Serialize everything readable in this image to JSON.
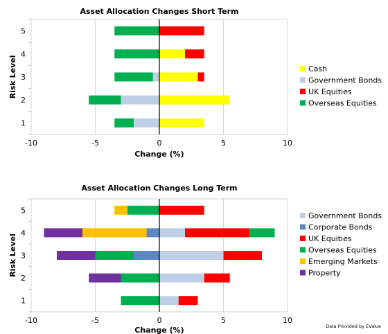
{
  "credit": "Data Provided by EValue",
  "chart_data": [
    {
      "type": "bar",
      "orientation": "horizontal",
      "stacked": "diverging",
      "title": "Asset Allocation Changes Short Term",
      "xlabel": "Change (%)",
      "ylabel": "Risk Level",
      "xlim": [
        -10,
        10
      ],
      "xticks": [
        "-10",
        "-5",
        "0",
        "5",
        "10"
      ],
      "categories": [
        "1",
        "2",
        "3",
        "4",
        "5"
      ],
      "grid": "vertical",
      "legend_position": "right",
      "legend_order": [
        "Cash",
        "Government Bonds",
        "UK Equities",
        "Overseas Equities"
      ],
      "series": [
        {
          "name": "Cash",
          "color": "#ffff00",
          "values": [
            3.5,
            5.5,
            3.0,
            2.0,
            0
          ]
        },
        {
          "name": "Government Bonds",
          "color": "#bfcfe5",
          "values": [
            -2.0,
            -3.0,
            -0.5,
            0,
            0
          ]
        },
        {
          "name": "UK Equities",
          "color": "#ff0000",
          "values": [
            0,
            0,
            0.5,
            1.5,
            3.5
          ]
        },
        {
          "name": "Overseas Equities",
          "color": "#00b050",
          "values": [
            -1.5,
            -2.5,
            -3.0,
            -3.5,
            -3.5
          ]
        }
      ]
    },
    {
      "type": "bar",
      "orientation": "horizontal",
      "stacked": "diverging",
      "title": "Asset Allocation Changes Long Term",
      "xlabel": "Change (%)",
      "ylabel": "Risk Level",
      "xlim": [
        -10,
        10
      ],
      "xticks": [
        "-10",
        "-5",
        "0",
        "5",
        "10"
      ],
      "categories": [
        "1",
        "2",
        "3",
        "4",
        "5"
      ],
      "grid": "vertical",
      "legend_position": "right",
      "legend_order": [
        "Government Bonds",
        "Corporate Bonds",
        "UK Equities",
        "Overseas Equities",
        "Emerging Markets",
        "Property"
      ],
      "series": [
        {
          "name": "Government Bonds",
          "color": "#bfcfe5",
          "values": [
            1.5,
            3.5,
            5.0,
            2.0,
            0
          ]
        },
        {
          "name": "Corporate Bonds",
          "color": "#5b87c7",
          "values": [
            0,
            0,
            -2.0,
            -1.0,
            0
          ]
        },
        {
          "name": "UK Equities",
          "color": "#ff0000",
          "values": [
            1.5,
            2.0,
            3.0,
            5.0,
            3.5
          ]
        },
        {
          "name": "Overseas Equities",
          "color": "#00b050",
          "values": [
            -3.0,
            -3.0,
            -3.0,
            2.0,
            -2.5
          ]
        },
        {
          "name": "Emerging Markets",
          "color": "#ffc000",
          "values": [
            0,
            0,
            0,
            -5.0,
            -1.0
          ]
        },
        {
          "name": "Property",
          "color": "#7030a0",
          "values": [
            0,
            -2.5,
            -3.0,
            -3.0,
            0
          ]
        }
      ]
    }
  ]
}
